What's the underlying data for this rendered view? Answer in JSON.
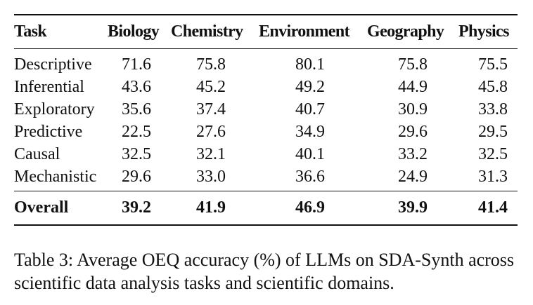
{
  "table": {
    "headers": [
      "Task",
      "Biology",
      "Chemistry",
      "Environment",
      "Geography",
      "Physics"
    ],
    "rows": [
      [
        "Descriptive",
        "71.6",
        "75.8",
        "80.1",
        "75.8",
        "75.5"
      ],
      [
        "Inferential",
        "43.6",
        "45.2",
        "49.2",
        "44.9",
        "45.8"
      ],
      [
        "Exploratory",
        "35.6",
        "37.4",
        "40.7",
        "30.9",
        "33.8"
      ],
      [
        "Predictive",
        "22.5",
        "27.6",
        "34.9",
        "29.6",
        "29.5"
      ],
      [
        "Causal",
        "32.5",
        "32.1",
        "40.1",
        "33.2",
        "32.5"
      ],
      [
        "Mechanistic",
        "29.6",
        "33.0",
        "36.6",
        "24.9",
        "31.3"
      ]
    ],
    "overall": [
      "Overall",
      "39.2",
      "41.9",
      "46.9",
      "39.9",
      "41.4"
    ]
  },
  "caption": "Table 3: Average OEQ accuracy (%) of LLMs on SDA-Synth across scientific data analysis tasks and scientific domains."
}
